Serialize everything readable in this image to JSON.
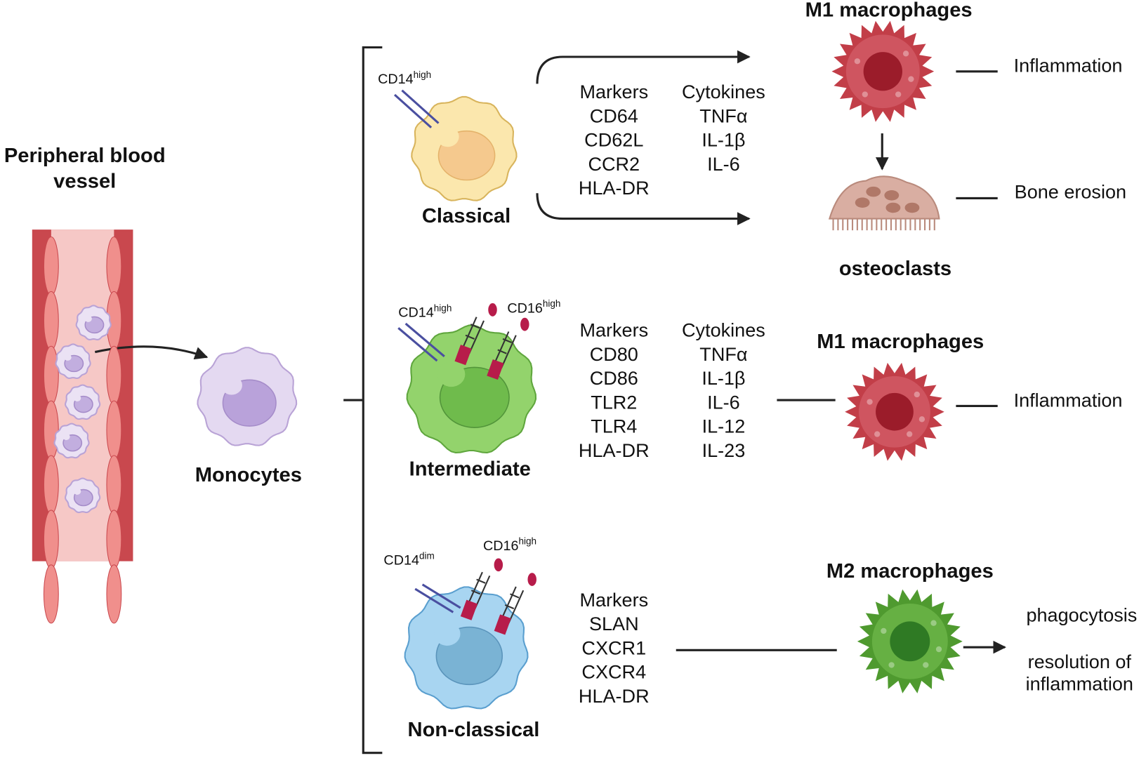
{
  "vessel": {
    "label_lines": [
      "Peripheral blood",
      "vessel"
    ]
  },
  "monocytes": {
    "label": "Monocytes"
  },
  "subsets": [
    {
      "name": "Classical",
      "receptors": [
        {
          "name": "CD14",
          "level": "high"
        }
      ],
      "markers": {
        "title": "Markers",
        "items": [
          "CD64",
          "CD62L",
          "CCR2",
          "HLA-DR"
        ]
      },
      "cytokines": {
        "title": "Cytokines",
        "items": [
          "TNFα",
          "IL-1β",
          "IL-6"
        ]
      }
    },
    {
      "name": "Intermediate",
      "receptors": [
        {
          "name": "CD14",
          "level": "high"
        },
        {
          "name": "CD16",
          "level": "high"
        }
      ],
      "markers": {
        "title": "Markers",
        "items": [
          "CD80",
          "CD86",
          "TLR2",
          "TLR4",
          "HLA-DR"
        ]
      },
      "cytokines": {
        "title": "Cytokines",
        "items": [
          "TNFα",
          "IL-1β",
          "IL-6",
          "IL-12",
          "IL-23"
        ]
      }
    },
    {
      "name": "Non-classical",
      "receptors": [
        {
          "name": "CD14",
          "level": "dim"
        },
        {
          "name": "CD16",
          "level": "high"
        }
      ],
      "markers": {
        "title": "Markers",
        "items": [
          "SLAN",
          "CXCR1",
          "CXCR4",
          "HLA-DR"
        ]
      }
    }
  ],
  "outcomes": [
    {
      "cell": "M1 macrophages",
      "effect": [
        "Inflammation"
      ]
    },
    {
      "cell": "osteoclasts",
      "effect": [
        "Bone erosion"
      ]
    },
    {
      "cell": "M1 macrophages",
      "effect": [
        "Inflammation"
      ]
    },
    {
      "cell": "M2 macrophages",
      "effect": [
        "phagocytosis",
        "resolution of",
        "inflammation"
      ]
    }
  ]
}
